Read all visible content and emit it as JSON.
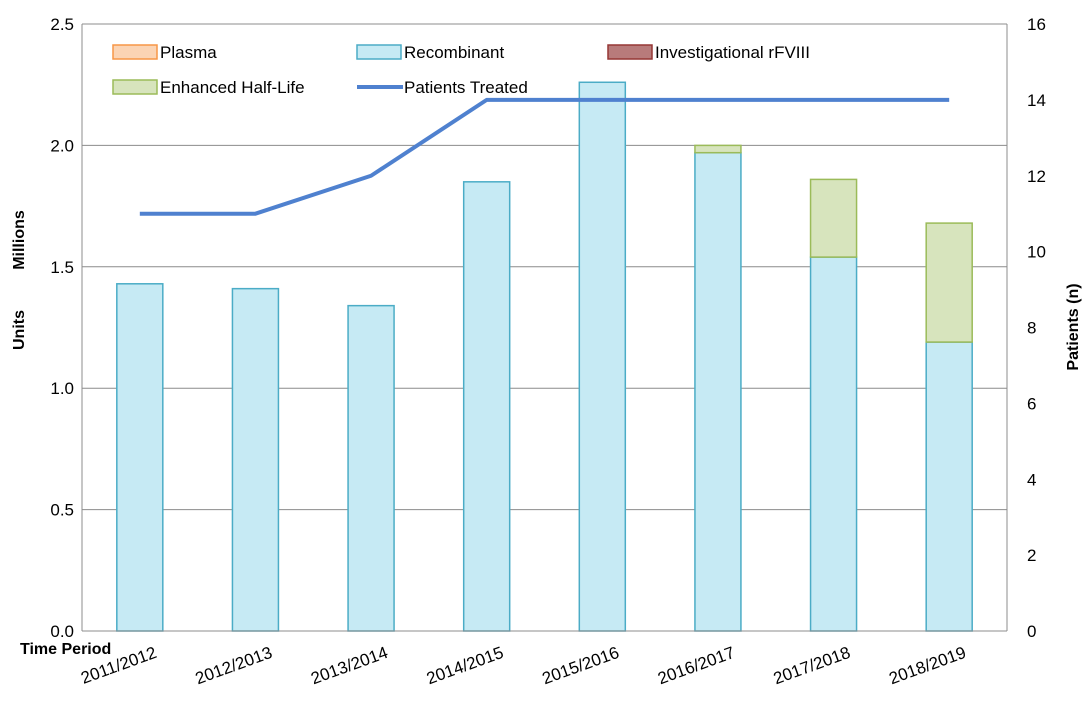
{
  "chart_data": {
    "type": "bar",
    "stacked": true,
    "categories": [
      "2011/2012",
      "2012/2013",
      "2013/2014",
      "2014/2015",
      "2015/2016",
      "2016/2017",
      "2017/2018",
      "2018/2019"
    ],
    "series": [
      {
        "name": "Plasma",
        "axis": "left",
        "color": "#FBD4B4",
        "edge": "#F79646",
        "values": [
          0,
          0,
          0,
          0,
          0,
          0,
          0,
          0
        ]
      },
      {
        "name": "Recombinant",
        "axis": "left",
        "color": "#C6EAF4",
        "edge": "#4BACC6",
        "values": [
          1.43,
          1.41,
          1.34,
          1.85,
          2.26,
          1.97,
          1.54,
          1.19
        ]
      },
      {
        "name": "Investigational rFVIII",
        "axis": "left",
        "color": "#B87B7B",
        "edge": "#953735",
        "values": [
          0,
          0,
          0,
          0,
          0,
          0,
          0,
          0
        ]
      },
      {
        "name": "Enhanced Half-Life",
        "axis": "left",
        "color": "#D7E4BD",
        "edge": "#9BBB59",
        "values": [
          0,
          0,
          0,
          0,
          0,
          0.03,
          0.32,
          0.49
        ]
      },
      {
        "name": "Patients Treated",
        "type": "line",
        "axis": "right",
        "color": "#4F81CF",
        "values": [
          11,
          11,
          12,
          14,
          14,
          14,
          14,
          14
        ]
      }
    ],
    "ylabel": "Units",
    "ylabel_unit": "Millions",
    "y2label": "Patients (n)",
    "xlabel": "Time Period",
    "ylim": [
      0,
      2.5
    ],
    "y2lim": [
      0,
      16
    ],
    "yticks": [
      "0.0",
      "0.5",
      "1.0",
      "1.5",
      "2.0",
      "2.5"
    ],
    "y2ticks": [
      "0",
      "2",
      "4",
      "6",
      "8",
      "10",
      "12",
      "14",
      "16"
    ],
    "grid": true,
    "legend_position": "top-left"
  }
}
